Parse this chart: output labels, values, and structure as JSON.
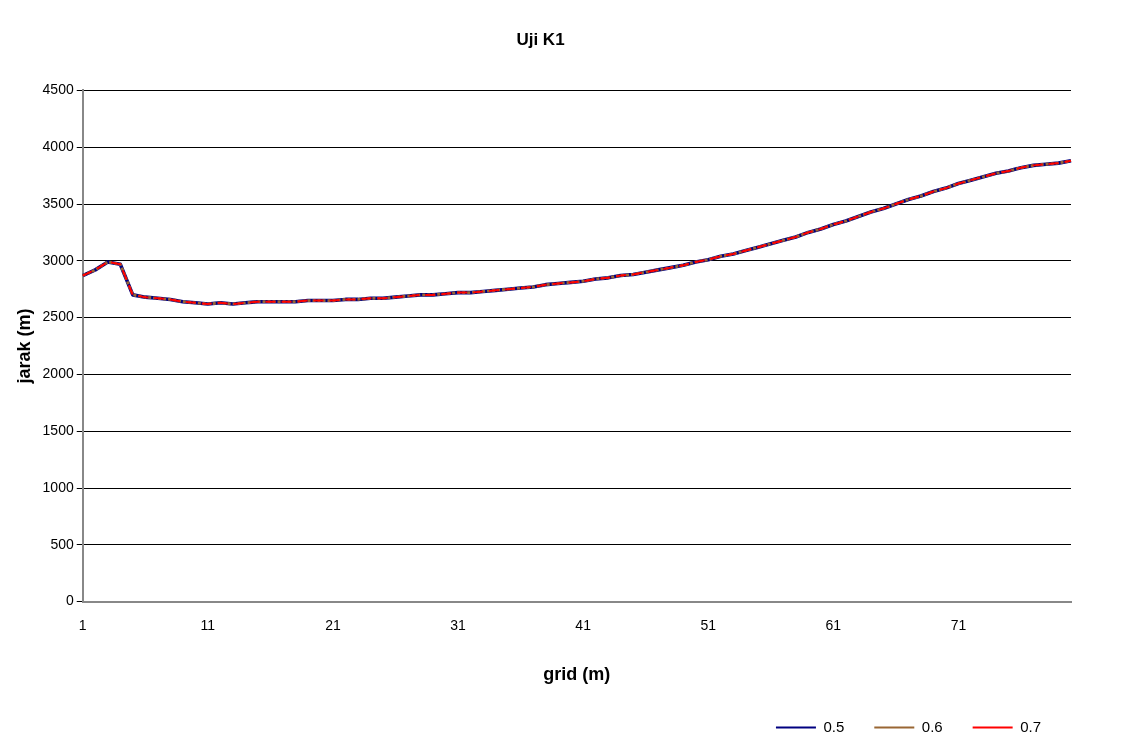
{
  "chart_data": {
    "type": "line",
    "title": "Uji K1",
    "xlabel": "grid (m)",
    "ylabel": "jarak (m)",
    "categories": [
      "1",
      null,
      null,
      null,
      null,
      null,
      null,
      null,
      null,
      null,
      "11",
      null,
      null,
      null,
      null,
      null,
      null,
      null,
      null,
      null,
      "21",
      null,
      null,
      null,
      null,
      null,
      null,
      null,
      null,
      null,
      "31",
      null,
      null,
      null,
      null,
      null,
      null,
      null,
      null,
      null,
      "41",
      null,
      null,
      null,
      null,
      null,
      null,
      null,
      null,
      null,
      "51",
      null,
      null,
      null,
      null,
      null,
      null,
      null,
      null,
      null,
      "61",
      null,
      null,
      null,
      null,
      null,
      null,
      null,
      null,
      null,
      "71",
      null,
      null,
      null,
      null,
      null,
      null,
      null,
      null,
      null
    ],
    "series": [
      {
        "name": "0.5",
        "color": "#000080",
        "line_style": "solid",
        "values": [
          2870,
          2920,
          2990,
          2970,
          2700,
          2680,
          2670,
          2660,
          2640,
          2630,
          2620,
          2630,
          2620,
          2630,
          2640,
          2640,
          2640,
          2640,
          2650,
          2650,
          2650,
          2660,
          2660,
          2670,
          2670,
          2680,
          2690,
          2700,
          2700,
          2710,
          2720,
          2720,
          2730,
          2740,
          2750,
          2760,
          2770,
          2790,
          2800,
          2810,
          2820,
          2840,
          2850,
          2870,
          2880,
          2900,
          2920,
          2940,
          2960,
          2990,
          3010,
          3040,
          3060,
          3090,
          3120,
          3150,
          3180,
          3210,
          3250,
          3280,
          3320,
          3350,
          3390,
          3430,
          3460,
          3500,
          3540,
          3570,
          3610,
          3640,
          3680,
          3710,
          3740,
          3770,
          3790,
          3820,
          3840,
          3850,
          3860,
          3880
        ]
      },
      {
        "name": "0.6",
        "color": "#996633",
        "line_style": "dotted",
        "values": [
          2870,
          2920,
          2990,
          2970,
          2700,
          2680,
          2670,
          2660,
          2640,
          2630,
          2620,
          2630,
          2620,
          2630,
          2640,
          2640,
          2640,
          2640,
          2650,
          2650,
          2650,
          2660,
          2660,
          2670,
          2670,
          2680,
          2690,
          2700,
          2700,
          2710,
          2720,
          2720,
          2730,
          2740,
          2750,
          2760,
          2770,
          2790,
          2800,
          2810,
          2820,
          2840,
          2850,
          2870,
          2880,
          2900,
          2920,
          2940,
          2960,
          2990,
          3010,
          3040,
          3060,
          3090,
          3120,
          3150,
          3180,
          3210,
          3250,
          3280,
          3320,
          3350,
          3390,
          3430,
          3460,
          3500,
          3540,
          3570,
          3610,
          3640,
          3680,
          3710,
          3740,
          3770,
          3790,
          3820,
          3840,
          3850,
          3860,
          3880
        ]
      },
      {
        "name": "0.7",
        "color": "#ff0000",
        "line_style": "dashed",
        "values": [
          2870,
          2920,
          2990,
          2970,
          2700,
          2680,
          2670,
          2660,
          2640,
          2630,
          2620,
          2630,
          2620,
          2630,
          2640,
          2640,
          2640,
          2640,
          2650,
          2650,
          2650,
          2660,
          2660,
          2670,
          2670,
          2680,
          2690,
          2700,
          2700,
          2710,
          2720,
          2720,
          2730,
          2740,
          2750,
          2760,
          2770,
          2790,
          2800,
          2810,
          2820,
          2840,
          2850,
          2870,
          2880,
          2900,
          2920,
          2940,
          2960,
          2990,
          3010,
          3040,
          3060,
          3090,
          3120,
          3150,
          3180,
          3210,
          3250,
          3280,
          3320,
          3350,
          3390,
          3430,
          3460,
          3500,
          3540,
          3570,
          3610,
          3640,
          3680,
          3710,
          3740,
          3770,
          3790,
          3820,
          3840,
          3850,
          3860,
          3880
        ]
      }
    ],
    "ylim": [
      0,
      4500
    ],
    "yticks": [
      0,
      500,
      1000,
      1500,
      2000,
      2500,
      3000,
      3500,
      4000,
      4500
    ],
    "grid": "y",
    "legend": "bottom right",
    "marker": "none"
  }
}
